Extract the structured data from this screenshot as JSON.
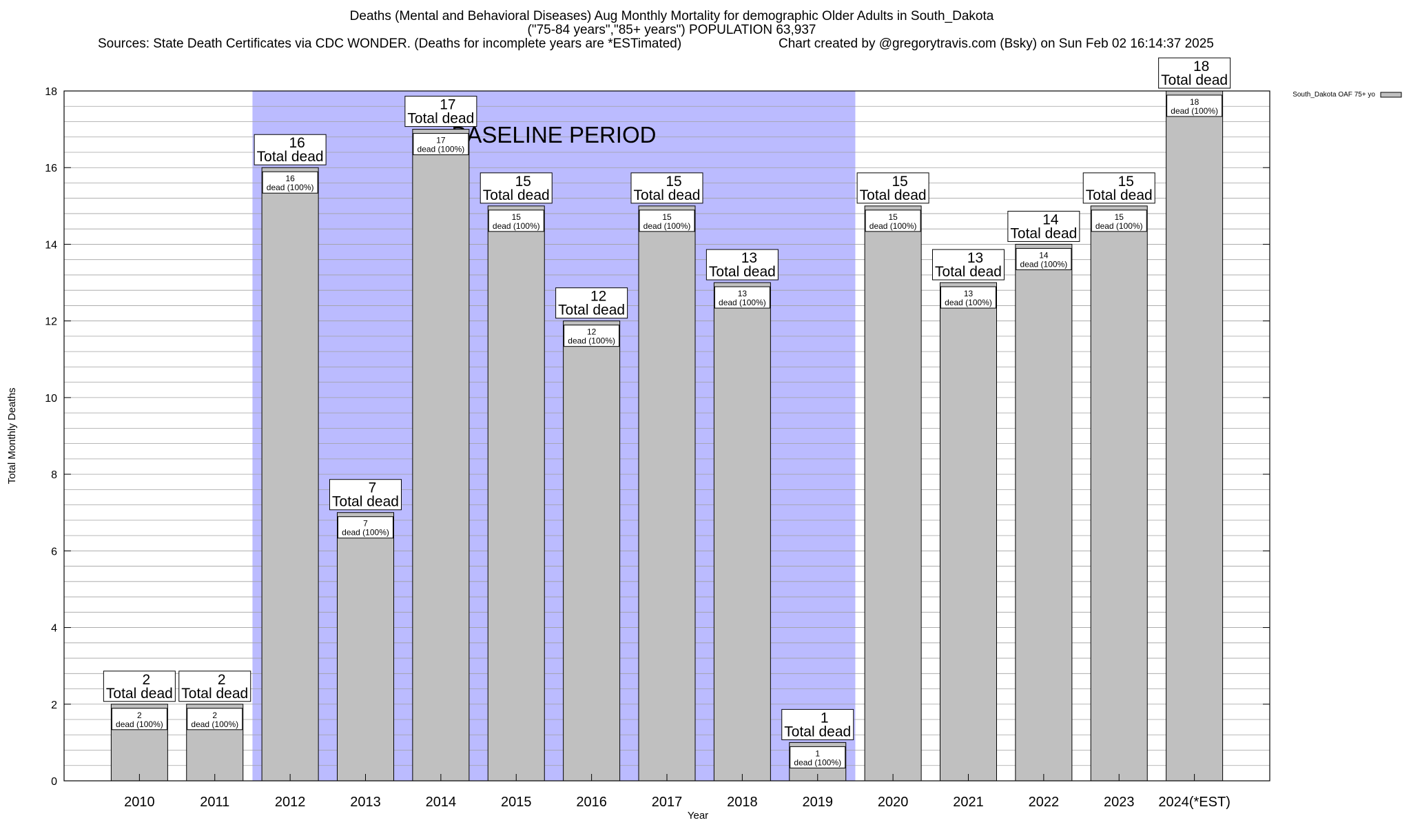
{
  "header": {
    "title": "Deaths (Mental and Behavioral Diseases) Aug Monthly Mortality for demographic Older Adults in South_Dakota",
    "subtitle": "(\"75-84 years\",\"85+ years\") POPULATION 63,937",
    "sources": "Sources: State Death Certificates via CDC WONDER. (Deaths for incomplete years are *ESTimated)",
    "credit": "Chart created by @gregorytravis.com (Bsky) on Sun Feb 02 16:14:37 2025"
  },
  "chart_data": {
    "type": "bar",
    "categories": [
      "2010",
      "2011",
      "2012",
      "2013",
      "2014",
      "2015",
      "2016",
      "2017",
      "2018",
      "2019",
      "2020",
      "2021",
      "2022",
      "2023",
      "2024(*EST)"
    ],
    "series": [
      {
        "name": "South_Dakota OAF 75+ yo",
        "values": [
          2,
          2,
          16,
          7,
          17,
          15,
          12,
          15,
          13,
          1,
          15,
          13,
          14,
          15,
          18
        ]
      }
    ],
    "total_label": "Total dead",
    "inner_label_suffix": "dead (100%)",
    "xlabel": "Year",
    "ylabel": "Total Monthly Deaths",
    "ylim": [
      0,
      18
    ],
    "yticks": [
      0,
      2,
      4,
      6,
      8,
      10,
      12,
      14,
      16,
      18
    ],
    "grid": true,
    "legend": "top-right",
    "baseline": {
      "label": "BASELINE PERIOD",
      "from": "2012",
      "to": "2019",
      "color": "#bbbbff"
    },
    "bar_color": "#c0c0c0"
  }
}
